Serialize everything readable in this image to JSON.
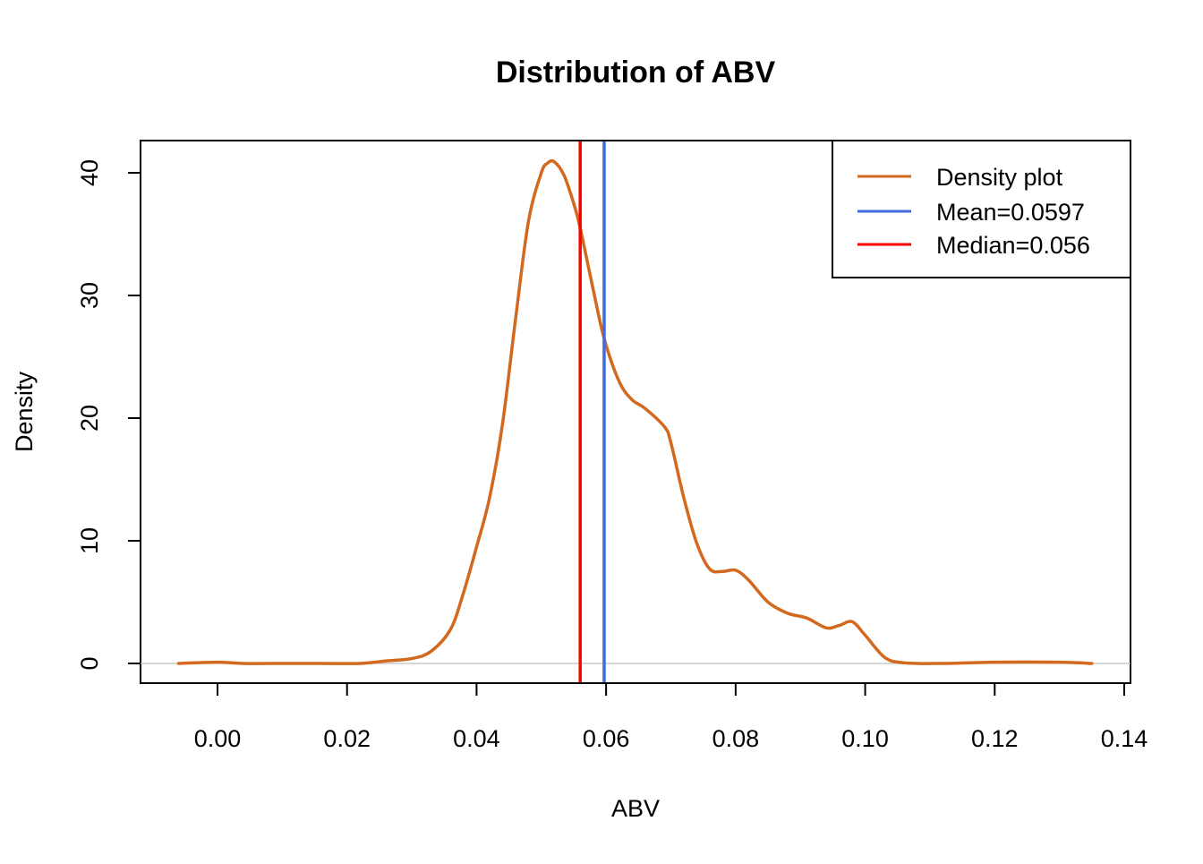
{
  "chart_data": {
    "type": "line",
    "title": "Distribution of ABV",
    "xlabel": "ABV",
    "ylabel": "Density",
    "xlim": [
      -0.0056,
      0.1354
    ],
    "ylim": [
      0,
      40.9
    ],
    "x_ticks": [
      0.0,
      0.02,
      0.04,
      0.06,
      0.08,
      0.1,
      0.12,
      0.14
    ],
    "x_tick_labels": [
      "0.00",
      "0.02",
      "0.04",
      "0.06",
      "0.08",
      "0.10",
      "0.12",
      "0.14"
    ],
    "y_ticks": [
      0,
      10,
      20,
      30,
      40
    ],
    "y_tick_labels": [
      "0",
      "10",
      "20",
      "30",
      "40"
    ],
    "grid": false,
    "baseline": {
      "y": 0,
      "color": "#bebebe"
    },
    "legend": {
      "position": "top-right",
      "entries": [
        {
          "label": "Density plot",
          "color": "#d2691e"
        },
        {
          "label": "Mean=0.0597",
          "color": "#4169e1"
        },
        {
          "label": "Median=0.056",
          "color": "#ff0000"
        }
      ]
    },
    "series": [
      {
        "name": "Density plot",
        "color": "#d2691e",
        "points": [
          [
            -0.006,
            0.0
          ],
          [
            0.0,
            0.1
          ],
          [
            0.004,
            0.0
          ],
          [
            0.01,
            0.0
          ],
          [
            0.016,
            0.0
          ],
          [
            0.022,
            0.0
          ],
          [
            0.026,
            0.2
          ],
          [
            0.03,
            0.4
          ],
          [
            0.033,
            1.0
          ],
          [
            0.036,
            2.8
          ],
          [
            0.038,
            5.8
          ],
          [
            0.04,
            9.5
          ],
          [
            0.042,
            13.5
          ],
          [
            0.044,
            19.5
          ],
          [
            0.046,
            28.0
          ],
          [
            0.048,
            36.0
          ],
          [
            0.05,
            40.0
          ],
          [
            0.051,
            40.8
          ],
          [
            0.052,
            40.9
          ],
          [
            0.0535,
            39.8
          ],
          [
            0.055,
            37.5
          ],
          [
            0.056,
            35.5
          ],
          [
            0.058,
            30.5
          ],
          [
            0.0597,
            26.5
          ],
          [
            0.062,
            23.0
          ],
          [
            0.064,
            21.5
          ],
          [
            0.066,
            20.8
          ],
          [
            0.069,
            19.3
          ],
          [
            0.07,
            18.0
          ],
          [
            0.072,
            13.5
          ],
          [
            0.074,
            9.8
          ],
          [
            0.076,
            7.7
          ],
          [
            0.078,
            7.5
          ],
          [
            0.08,
            7.6
          ],
          [
            0.082,
            6.8
          ],
          [
            0.085,
            5.0
          ],
          [
            0.088,
            4.1
          ],
          [
            0.091,
            3.7
          ],
          [
            0.094,
            2.9
          ],
          [
            0.096,
            3.1
          ],
          [
            0.098,
            3.4
          ],
          [
            0.1,
            2.3
          ],
          [
            0.103,
            0.5
          ],
          [
            0.106,
            0.05
          ],
          [
            0.112,
            0.0
          ],
          [
            0.12,
            0.1
          ],
          [
            0.13,
            0.1
          ],
          [
            0.135,
            0.0
          ]
        ]
      }
    ],
    "vlines": [
      {
        "name": "Median",
        "x": 0.056,
        "color": "#ff0000"
      },
      {
        "name": "Mean",
        "x": 0.0597,
        "color": "#4169e1"
      }
    ]
  }
}
